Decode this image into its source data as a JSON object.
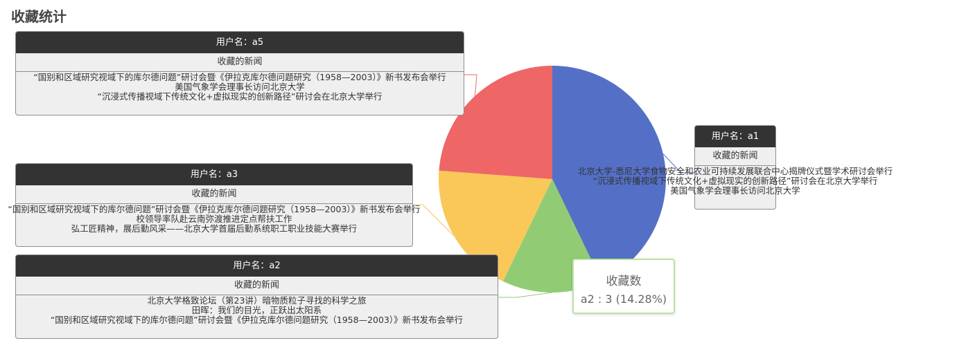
{
  "page": {
    "title": "收藏统计"
  },
  "chart_data": {
    "type": "pie",
    "series_name": "收藏数",
    "slices": [
      {
        "name": "a1",
        "value": 9,
        "color": "#5470c6"
      },
      {
        "name": "a2",
        "value": 3,
        "color": "#91cc75"
      },
      {
        "name": "a3",
        "value": 4,
        "color": "#fac858"
      },
      {
        "name": "a5",
        "value": 5,
        "color": "#ee6666"
      }
    ]
  },
  "callouts": {
    "a5": {
      "header": "用户名：a5",
      "subheader": "收藏的新闻",
      "items": [
        "“国别和区域研究视域下的库尔德问题”研讨会暨《伊拉克库尔德问题研究（1958—2003）》新书发布会举行",
        "美国气象学会理事长访问北京大学",
        "“沉浸式传播视域下传统文化+虚拟现实的创新路径”研讨会在北京大学举行"
      ]
    },
    "a3": {
      "header": "用户名：a3",
      "subheader": "收藏的新闻",
      "items": [
        "“国别和区域研究视域下的库尔德问题”研讨会暨《伊拉克库尔德问题研究（1958—2003）》新书发布会举行",
        "校领导率队赴云南弥渡推进定点帮扶工作",
        "弘工匠精神，展后勤风采——北京大学首届后勤系统职工职业技能大赛举行"
      ]
    },
    "a2": {
      "header": "用户名：a2",
      "subheader": "收藏的新闻",
      "items": [
        "北京大学格致论坛（第23讲）暗物质粒子寻找的科学之旅",
        "田晖：我们的目光，正跃出太阳系",
        "“国别和区域研究视域下的库尔德问题”研讨会暨《伊拉克库尔德问题研究（1958—2003）》新书发布会举行"
      ]
    },
    "a1": {
      "header": "用户名：a1",
      "subheader": "收藏的新闻",
      "items": [
        "北京大学-悉尼大学食物安全和农业可持续发展联合中心揭牌仪式暨学术研讨会举行",
        "“沉浸式传播视域下传统文化+虚拟现实的创新路径”研讨会在北京大学举行",
        "美国气象学会理事长访问北京大学"
      ]
    }
  },
  "tooltip": {
    "title": "收藏数",
    "body": "a2 : 3 (14.28%)"
  }
}
